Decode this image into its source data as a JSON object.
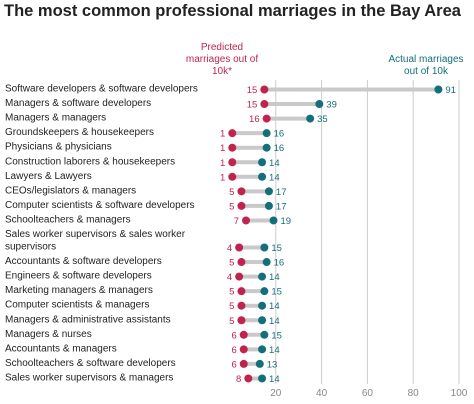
{
  "colors": {
    "predicted": "#c0234e",
    "actual": "#136f7a",
    "bar": "#c9c9c9",
    "axis": "#cccccc"
  },
  "chart_data": {
    "type": "dumbbell",
    "title": "The most common professional marriages in the Bay Area",
    "series": [
      {
        "name": "Predicted marriages out of 10k*",
        "key": "predicted"
      },
      {
        "name": "Actual marriages out of 10k",
        "key": "actual"
      }
    ],
    "predicted_label": [
      "Predicted",
      "marriages out of",
      "10k*"
    ],
    "actual_label": [
      "Actual marriages",
      "out of 10k"
    ],
    "xlim": [
      0,
      100
    ],
    "xticks": [
      20,
      40,
      60,
      80,
      100
    ],
    "rows": [
      {
        "category": [
          "Software developers & software developers"
        ],
        "predicted": 15,
        "actual": 91
      },
      {
        "category": [
          "Managers & software developers"
        ],
        "predicted": 15,
        "actual": 39
      },
      {
        "category": [
          "Managers & managers"
        ],
        "predicted": 16,
        "actual": 35
      },
      {
        "category": [
          "Groundskeepers & housekeepers"
        ],
        "predicted": 1,
        "actual": 16
      },
      {
        "category": [
          "Physicians & physicians"
        ],
        "predicted": 1,
        "actual": 16
      },
      {
        "category": [
          "Construction laborers & housekeepers"
        ],
        "predicted": 1,
        "actual": 14
      },
      {
        "category": [
          "Lawyers & Lawyers"
        ],
        "predicted": 1,
        "actual": 14
      },
      {
        "category": [
          "CEOs/legislators & managers"
        ],
        "predicted": 5,
        "actual": 17
      },
      {
        "category": [
          "Computer scientists & software developers"
        ],
        "predicted": 5,
        "actual": 17
      },
      {
        "category": [
          "Schoolteachers & managers"
        ],
        "predicted": 7,
        "actual": 19
      },
      {
        "category": [
          "Sales worker supervisors & sales worker",
          "supervisors"
        ],
        "predicted": 4,
        "actual": 15
      },
      {
        "category": [
          "Accountants & software developers"
        ],
        "predicted": 5,
        "actual": 16
      },
      {
        "category": [
          "Engineers & software developers"
        ],
        "predicted": 4,
        "actual": 14
      },
      {
        "category": [
          "Marketing managers & managers"
        ],
        "predicted": 5,
        "actual": 15
      },
      {
        "category": [
          "Computer scientists & managers"
        ],
        "predicted": 5,
        "actual": 14
      },
      {
        "category": [
          "Managers & administrative assistants"
        ],
        "predicted": 5,
        "actual": 14
      },
      {
        "category": [
          "Managers & nurses"
        ],
        "predicted": 6,
        "actual": 15
      },
      {
        "category": [
          "Accountants & managers"
        ],
        "predicted": 6,
        "actual": 14
      },
      {
        "category": [
          "Schoolteachers & software developers"
        ],
        "predicted": 6,
        "actual": 13
      },
      {
        "category": [
          "Sales worker supervisors & managers"
        ],
        "predicted": 8,
        "actual": 14
      }
    ]
  }
}
